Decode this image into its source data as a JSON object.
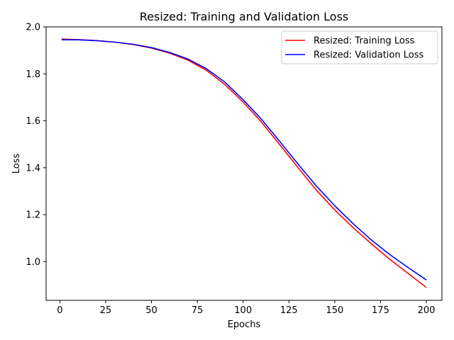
{
  "chart_data": {
    "type": "line",
    "title": "Resized: Training and Validation Loss",
    "xlabel": "Epochs",
    "ylabel": "Loss",
    "xlim": [
      -7.5,
      208.5
    ],
    "ylim": [
      0.835,
      2.0
    ],
    "xticks": [
      0,
      25,
      50,
      75,
      100,
      125,
      150,
      175,
      200
    ],
    "yticks": [
      1.0,
      1.2,
      1.4,
      1.6,
      1.8,
      2.0
    ],
    "ytick_labels": [
      "1.0",
      "1.2",
      "1.4",
      "1.6",
      "1.8",
      "2.0"
    ],
    "grid": false,
    "legend_position": "top-right",
    "series": [
      {
        "name": "Resized: Training Loss",
        "color": "#ff0000",
        "x": [
          1,
          10,
          20,
          30,
          40,
          50,
          60,
          70,
          80,
          90,
          100,
          110,
          120,
          130,
          140,
          150,
          160,
          170,
          180,
          190,
          200
        ],
        "y": [
          1.948,
          1.946,
          1.942,
          1.935,
          1.925,
          1.91,
          1.888,
          1.858,
          1.815,
          1.755,
          1.68,
          1.595,
          1.498,
          1.4,
          1.305,
          1.22,
          1.145,
          1.076,
          1.01,
          0.95,
          0.89
        ]
      },
      {
        "name": "Resized: Validation Loss",
        "color": "#0000ff",
        "x": [
          1,
          10,
          20,
          30,
          40,
          50,
          60,
          70,
          80,
          90,
          100,
          110,
          120,
          130,
          140,
          150,
          160,
          170,
          180,
          190,
          200
        ],
        "y": [
          1.945,
          1.945,
          1.941,
          1.935,
          1.926,
          1.912,
          1.891,
          1.863,
          1.822,
          1.765,
          1.69,
          1.607,
          1.512,
          1.415,
          1.322,
          1.238,
          1.162,
          1.092,
          1.03,
          0.975,
          0.922
        ]
      }
    ]
  }
}
